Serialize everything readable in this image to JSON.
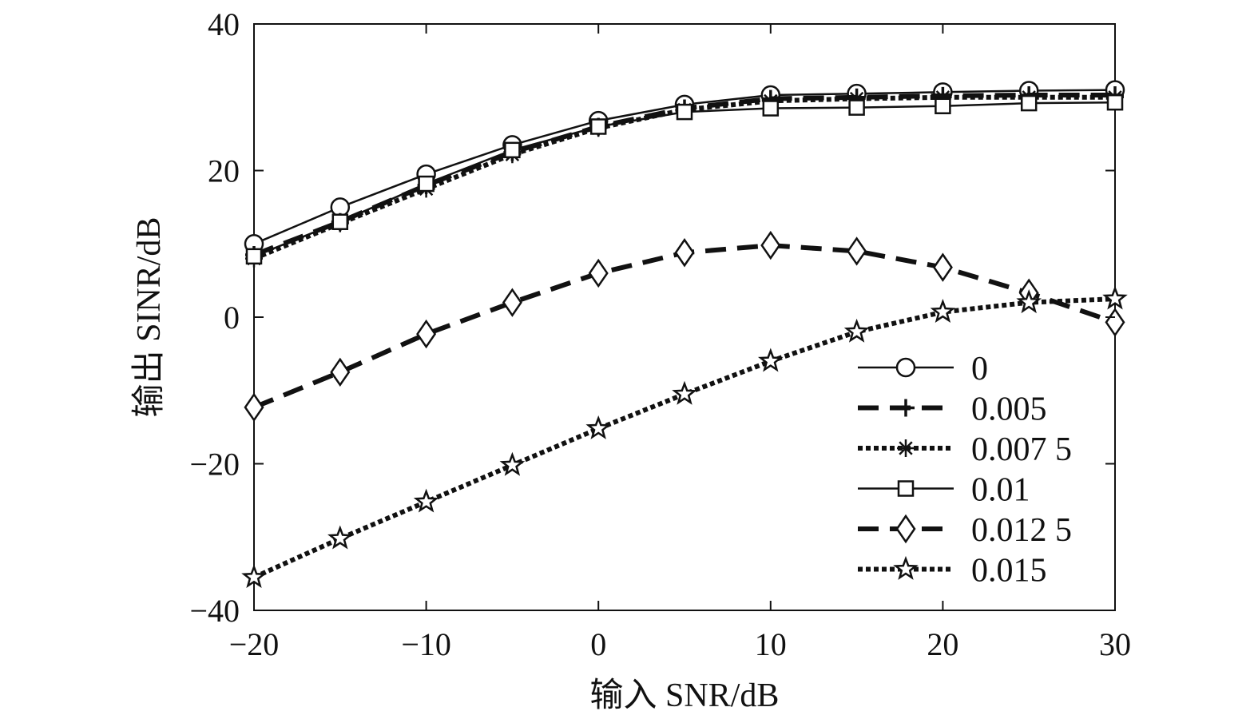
{
  "chart_data": {
    "type": "line",
    "xlabel": "输入 SNR/dB",
    "ylabel": "输出 SINR/dB",
    "xlim": [
      -20,
      30
    ],
    "ylim": [
      -40,
      40
    ],
    "x_ticks": [
      -20,
      -10,
      0,
      10,
      20,
      30
    ],
    "y_ticks": [
      -40,
      -20,
      0,
      20,
      40
    ],
    "x_tick_labels": [
      "−20",
      "−10",
      "0",
      "10",
      "20",
      "30"
    ],
    "y_tick_labels": [
      "−40",
      "−20",
      "0",
      "20",
      "40"
    ],
    "grid": false,
    "legend_position": "bottom-right",
    "x": [
      -20,
      -15,
      -10,
      -5,
      0,
      5,
      10,
      15,
      20,
      25,
      30
    ],
    "series": [
      {
        "name": "0",
        "line_style": "solid",
        "marker": "circle",
        "values": [
          10.0,
          15.0,
          19.5,
          23.5,
          26.8,
          29.0,
          30.3,
          30.5,
          30.7,
          30.9,
          31.0
        ]
      },
      {
        "name": "0.005",
        "line_style": "dashed",
        "marker": "plus",
        "values": [
          8.5,
          13.0,
          18.0,
          22.5,
          26.0,
          28.5,
          29.8,
          30.0,
          30.2,
          30.3,
          30.3
        ]
      },
      {
        "name": "0.007 5",
        "line_style": "dotted",
        "marker": "asterisk",
        "values": [
          8.0,
          12.8,
          17.5,
          22.2,
          25.8,
          28.3,
          29.5,
          29.8,
          30.0,
          30.0,
          30.0
        ]
      },
      {
        "name": "0.01",
        "line_style": "solid",
        "marker": "square",
        "values": [
          8.3,
          13.0,
          18.2,
          22.8,
          26.0,
          28.0,
          28.5,
          28.6,
          28.8,
          29.2,
          29.3
        ]
      },
      {
        "name": "0.012 5",
        "line_style": "dashed",
        "marker": "diamond",
        "values": [
          -12.3,
          -7.5,
          -2.3,
          2.0,
          6.0,
          8.8,
          9.8,
          9.0,
          6.8,
          3.3,
          -0.7
        ]
      },
      {
        "name": "0.015",
        "line_style": "dotted",
        "marker": "star",
        "values": [
          -35.5,
          -30.2,
          -25.2,
          -20.2,
          -15.2,
          -10.5,
          -6.0,
          -2.0,
          0.7,
          2.0,
          2.5
        ]
      }
    ],
    "color": "#111111"
  }
}
